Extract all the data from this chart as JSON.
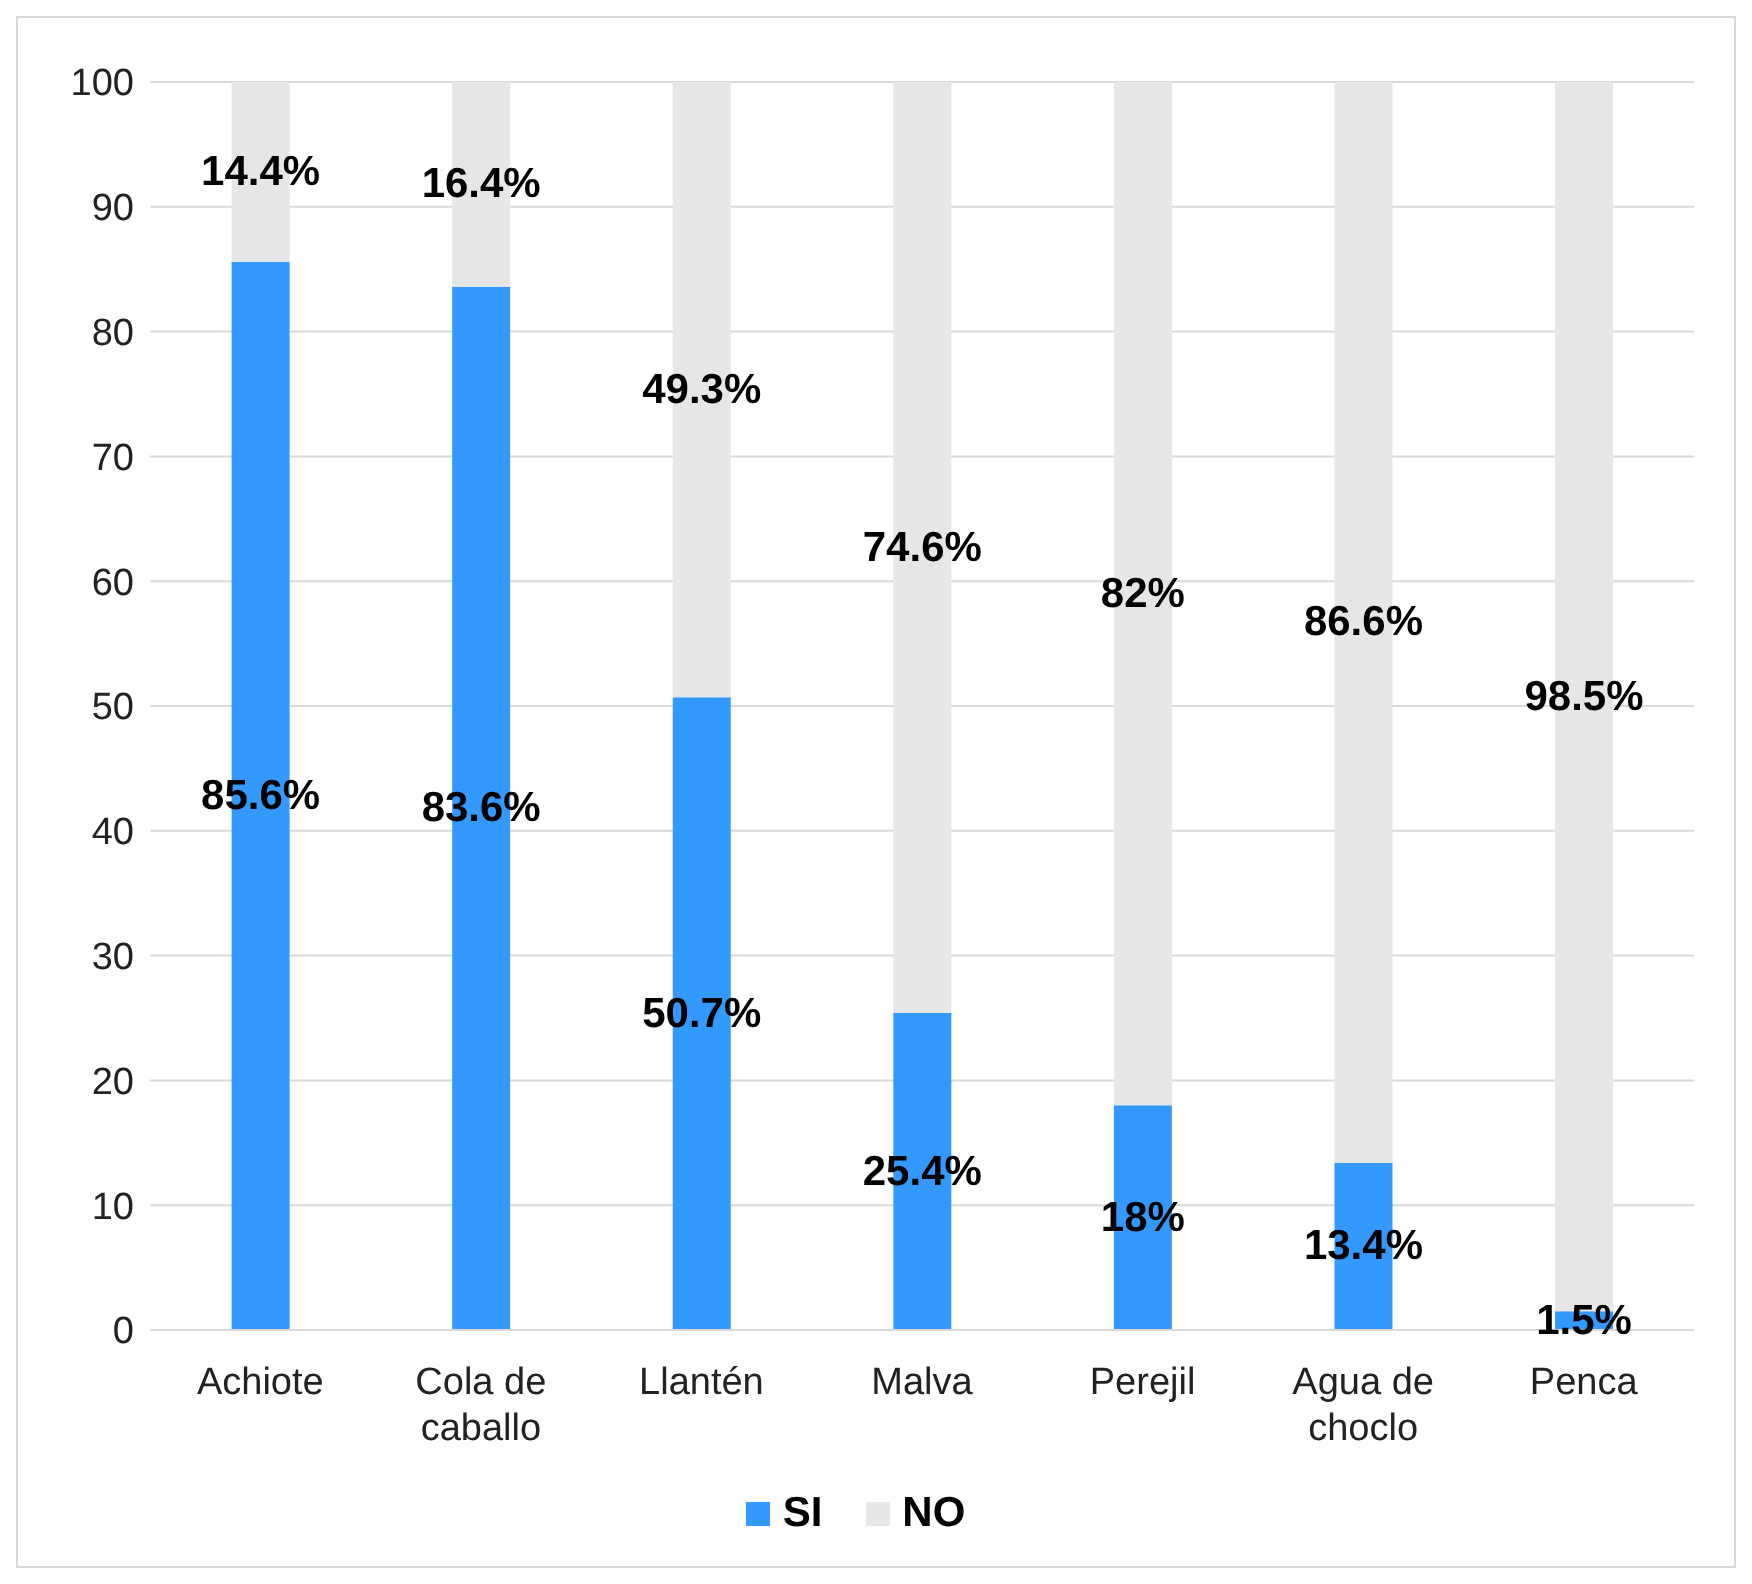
{
  "chart_data": {
    "type": "bar",
    "stacked": true,
    "categories": [
      "Achiote",
      "Cola de caballo",
      "Llantén",
      "Malva",
      "Perejil",
      "Agua de choclo",
      "Penca"
    ],
    "series": [
      {
        "name": "SI",
        "color": "#3399ff",
        "values": [
          85.6,
          83.6,
          50.7,
          25.4,
          18,
          13.4,
          1.5
        ],
        "value_labels": [
          "85.6%",
          "83.6%",
          "50.7%",
          "25.4%",
          "18%",
          "13.4%",
          "1.5%"
        ]
      },
      {
        "name": "NO",
        "color": "#e6e6e6",
        "values": [
          14.4,
          16.4,
          49.3,
          74.6,
          82,
          86.6,
          98.5
        ],
        "value_labels": [
          "14.4%",
          "16.4%",
          "49.3%",
          "74.6%",
          "82%",
          "86.6%",
          "98.5%"
        ]
      }
    ],
    "ylim": [
      0,
      100
    ],
    "yticks": [
      0,
      10,
      20,
      30,
      40,
      50,
      60,
      70,
      80,
      90,
      100
    ],
    "grid": "y",
    "legend": "bottom"
  }
}
